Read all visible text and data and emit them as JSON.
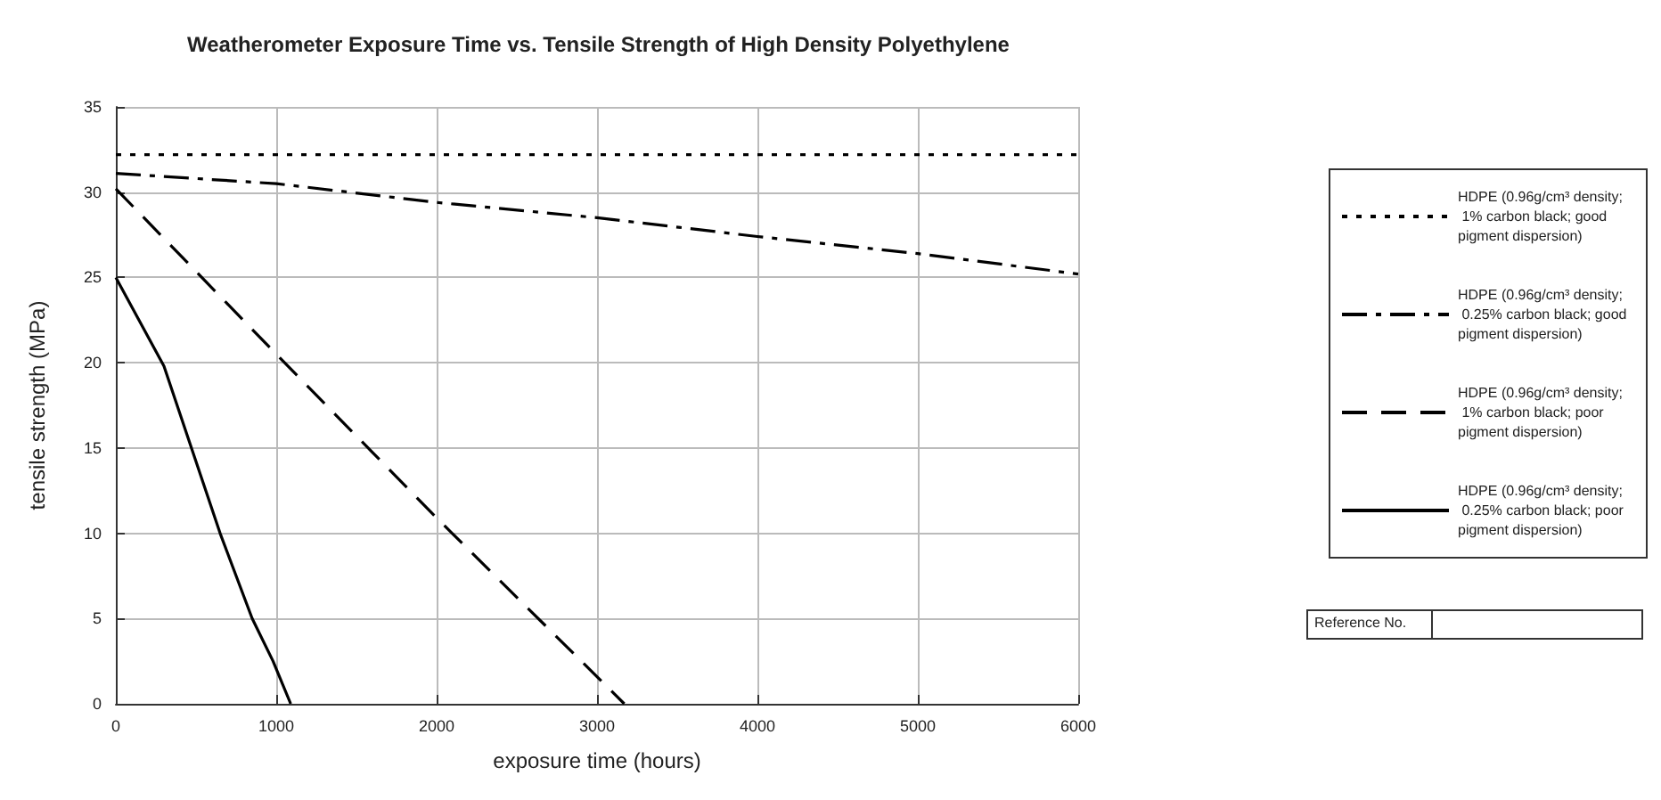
{
  "chart_data": {
    "type": "line",
    "title": "Weatherometer Exposure Time vs. Tensile Strength of High Density Polyethylene",
    "xlabel": "exposure time (hours)",
    "ylabel": "tensile strength (MPa)",
    "xlim": [
      0,
      6000
    ],
    "xticks": [
      0,
      1000,
      2000,
      3000,
      4000,
      5000,
      6000
    ],
    "ylim": [
      0,
      35
    ],
    "yticks": [
      0,
      5,
      10,
      15,
      20,
      25,
      30,
      35
    ],
    "grid": true,
    "legend": "right",
    "marker": "none",
    "annotations": [
      "Reference No."
    ],
    "series": [
      {
        "name": "HDPE (0.96g/cm³ density; 1% carbon black; good pigment dispersion)",
        "color": "#000000",
        "line_style": "dotted",
        "x": [
          0,
          6000
        ],
        "values": [
          32.2,
          32.2
        ]
      },
      {
        "name": "HDPE (0.96g/cm³ density; 0.25% carbon black; good pigment dispersion)",
        "color": "#000000",
        "line_style": "dashdot",
        "x": [
          0,
          1000,
          2000,
          3000,
          4000,
          5000,
          6000
        ],
        "values": [
          31.1,
          30.5,
          29.4,
          28.5,
          27.4,
          26.4,
          25.2
        ]
      },
      {
        "name": "HDPE (0.96g/cm³ density; 1% carbon black; poor pigment dispersion)",
        "color": "#000000",
        "line_style": "dashed",
        "x": [
          0,
          1000,
          2000,
          3170
        ],
        "values": [
          30.2,
          20.5,
          10.9,
          0
        ]
      },
      {
        "name": "HDPE (0.96g/cm³ density; 0.25% carbon black; poor pigment dispersion)",
        "color": "#000000",
        "line_style": "solid",
        "x": [
          0,
          300,
          650,
          850,
          980,
          1090
        ],
        "values": [
          25,
          19.8,
          10,
          5,
          2.5,
          0
        ]
      }
    ]
  }
}
